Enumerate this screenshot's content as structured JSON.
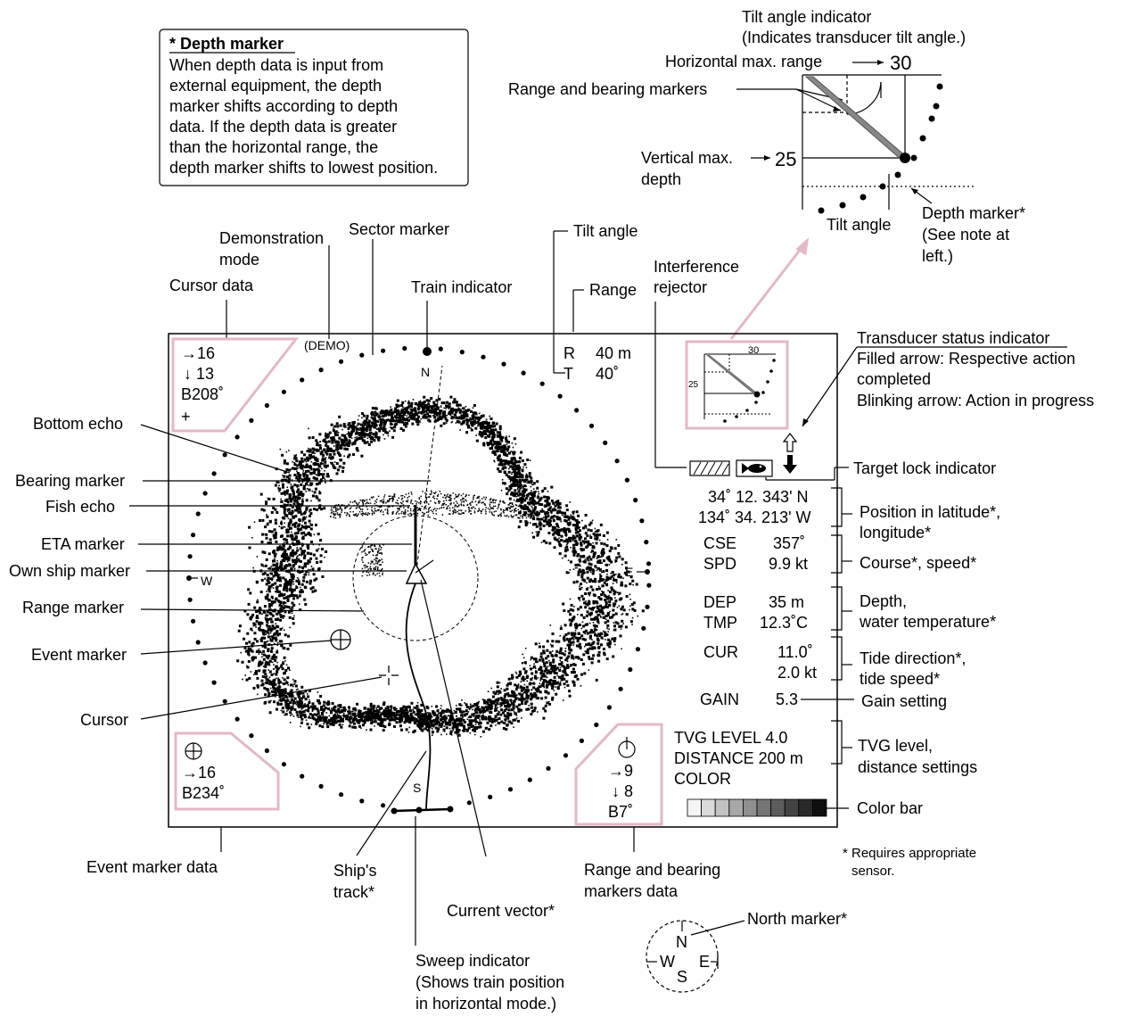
{
  "note_box": {
    "title": "* Depth marker",
    "lines": [
      "When depth data is input from",
      "external equipment, the depth",
      "marker shifts according to depth",
      "data. If the depth data is greater",
      "than the horizontal range, the",
      "depth marker shifts to lowest position."
    ]
  },
  "inset": {
    "tilt_title_1": "Tilt angle indicator",
    "tilt_title_2": "(Indicates transducer tilt angle.)",
    "horizontal_max_range": "Horizontal max. range",
    "horizontal_value": "30",
    "range_bearing_markers": "Range and bearing markers",
    "vertical_max_depth_1": "Vertical max.",
    "vertical_max_depth_2": "depth",
    "vertical_value": "25",
    "tilt_angle": "Tilt angle",
    "depth_marker_1": "Depth marker*",
    "depth_marker_2": "(See note at",
    "depth_marker_3": "left.)"
  },
  "labels": {
    "demonstration_mode_1": "Demonstration",
    "demonstration_mode_2": "mode",
    "sector_marker": "Sector marker",
    "tilt_angle": "Tilt angle",
    "cursor_data": "Cursor data",
    "train_indicator": "Train indicator",
    "range": "Range",
    "interference_rejector_1": "Interference",
    "interference_rejector_2": "rejector",
    "transducer_status_title": "Transducer status indicator",
    "transducer_status_1": "Filled arrow:  Respective action",
    "transducer_status_2": "completed",
    "transducer_status_3": "Blinking arrow: Action in progress",
    "bottom_echo": "Bottom echo",
    "bearing_marker": "Bearing marker",
    "fish_echo": "Fish echo",
    "eta_marker": "ETA marker",
    "own_ship_marker": "Own ship marker",
    "range_marker": "Range marker",
    "event_marker": "Event marker",
    "cursor": "Cursor",
    "target_lock_indicator": "Target lock indicator",
    "position_1": "Position in latitude*,",
    "position_2": "longitude*",
    "course_speed": "Course*, speed*",
    "depth_temp_1": "Depth,",
    "depth_temp_2": "water temperature*",
    "tide_1": "Tide direction*,",
    "tide_2": "tide speed*",
    "gain_setting": "Gain setting",
    "tvg_1": "TVG level,",
    "tvg_2": "distance settings",
    "color_bar": "Color bar",
    "requires_1": "* Requires appropriate",
    "requires_2": "sensor.",
    "event_marker_data": "Event marker data",
    "ships_track_1": "Ship's",
    "ships_track_2": "track*",
    "current_vector": "Current vector*",
    "range_bearing_data_1": "Range and bearing",
    "range_bearing_data_2": "markers data",
    "sweep_1": "Sweep indicator",
    "sweep_2": "(Shows train position",
    "sweep_3": "in horizontal mode.)",
    "north_marker": "North marker*"
  },
  "screen": {
    "cursor_range": "→16",
    "cursor_depth": "↓ 13",
    "cursor_bearing": "B208˚",
    "cursor_symbol": "+",
    "demo": "(DEMO)",
    "north": "N",
    "range_label": "R",
    "range_value": "40 m",
    "tilt_label": "T",
    "tilt_value": "40˚",
    "east": "E",
    "west": "W",
    "south": "S",
    "event_range": "→16",
    "event_bearing": "B234˚",
    "rb_range": "→9",
    "rb_depth": "↓ 8",
    "rb_bearing": "B7˚",
    "lat": "34˚ 12. 343' N",
    "lon": "134˚ 34. 213' W",
    "cse_label": "CSE",
    "cse_value": "357˚",
    "spd_label": "SPD",
    "spd_value": "9.9 kt",
    "dep_label": "DEP",
    "dep_value": "35  m",
    "tmp_label": "TMP",
    "tmp_value": "12.3˚C",
    "cur_label": "CUR",
    "cur_dir": "11.0˚",
    "cur_speed": "2.0 kt",
    "gain_label": "GAIN",
    "gain_value": "5.3",
    "tvg": "TVG LEVEL 4.0",
    "distance": "DISTANCE 200 m",
    "color": "COLOR",
    "mini_30": "30",
    "mini_25": "25"
  },
  "compass": {
    "n": "N",
    "s": "S",
    "e": "E",
    "w": "W"
  },
  "colors": {
    "pink": "#e3b8c8",
    "echo": "#000000"
  }
}
